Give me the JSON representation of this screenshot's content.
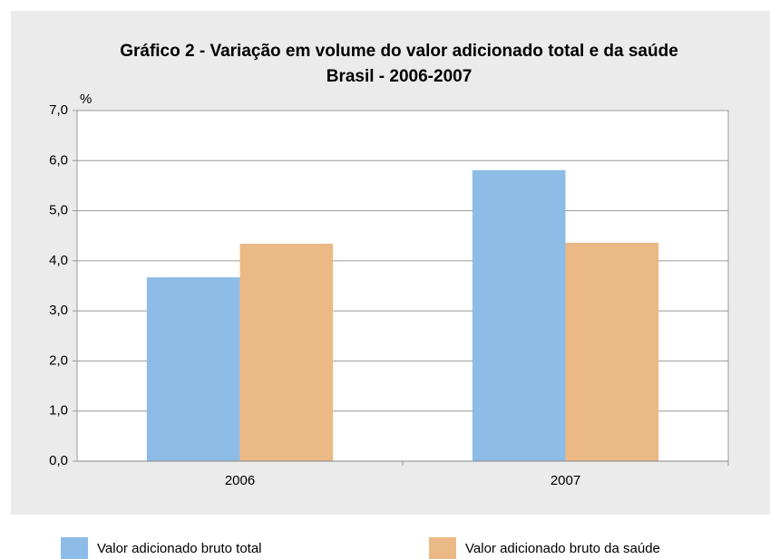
{
  "chart_data": {
    "type": "bar",
    "title": "Gráfico 2 - Variação em volume do valor adicionado total e da saúde",
    "subtitle": "Brasil - 2006-2007",
    "y_label": "%",
    "categories": [
      "2006",
      "2007"
    ],
    "series": [
      {
        "name": "Valor adicionado bruto total",
        "color": "#8dbde6",
        "values": [
          3.67,
          5.81
        ]
      },
      {
        "name": "Valor adicionado bruto da saúde",
        "color": "#ebb986",
        "values": [
          4.34,
          4.36
        ]
      }
    ],
    "ylim": [
      0,
      7
    ],
    "yticks": [
      {
        "value": 0,
        "label": "0,0"
      },
      {
        "value": 1,
        "label": "1,0"
      },
      {
        "value": 2,
        "label": "2,0"
      },
      {
        "value": 3,
        "label": "3,0"
      },
      {
        "value": 4,
        "label": "4,0"
      },
      {
        "value": 5,
        "label": "5,0"
      },
      {
        "value": 6,
        "label": "6,0"
      },
      {
        "value": 7,
        "label": "7,0"
      }
    ],
    "grid": true
  }
}
